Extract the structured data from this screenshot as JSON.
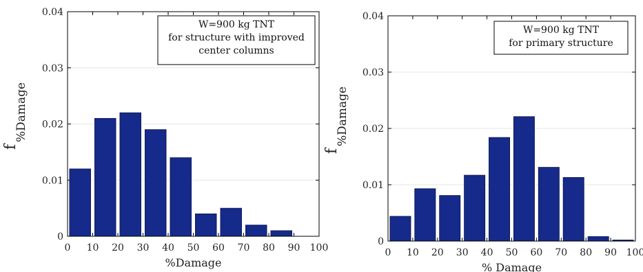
{
  "chart_data": [
    {
      "type": "bar",
      "bar_color": "#152a8a",
      "x": [
        5,
        15,
        25,
        35,
        45,
        55,
        65,
        75,
        85,
        95
      ],
      "values": [
        0.012,
        0.021,
        0.022,
        0.019,
        0.014,
        0.004,
        0.005,
        0.002,
        0.001,
        0.0
      ],
      "xlim": [
        0,
        100
      ],
      "ylim": [
        0,
        0.04
      ],
      "xticks": [
        "0",
        "10",
        "20",
        "30",
        "40",
        "50",
        "60",
        "70",
        "80",
        "90",
        "100"
      ],
      "yticks": [
        "0",
        "0.01",
        "0.02",
        "0.03",
        "0.04"
      ],
      "xlabel": "%Damage",
      "ylabel_main": "f",
      "ylabel_sub": "%Damage",
      "annotation": [
        "W=900 kg TNT",
        "for structure with improved",
        "center columns"
      ],
      "grid": true
    },
    {
      "type": "bar",
      "bar_color": "#152a8a",
      "x": [
        5,
        15,
        25,
        35,
        45,
        55,
        65,
        75,
        85,
        95
      ],
      "values": [
        0.0044,
        0.0093,
        0.0081,
        0.0117,
        0.0184,
        0.0221,
        0.0131,
        0.0113,
        0.0008,
        0.0002
      ],
      "xlim": [
        0,
        100
      ],
      "ylim": [
        0,
        0.04
      ],
      "xticks": [
        "0",
        "10",
        "20",
        "30",
        "40",
        "50",
        "60",
        "70",
        "80",
        "90",
        "100"
      ],
      "yticks": [
        "0",
        "0.01",
        "0.02",
        "0.03",
        "0.04"
      ],
      "xlabel": "% Damage",
      "ylabel_main": "f",
      "ylabel_sub": "%Damage",
      "annotation": [
        "W=900 kg TNT",
        "for primary structure"
      ],
      "grid": true
    }
  ]
}
